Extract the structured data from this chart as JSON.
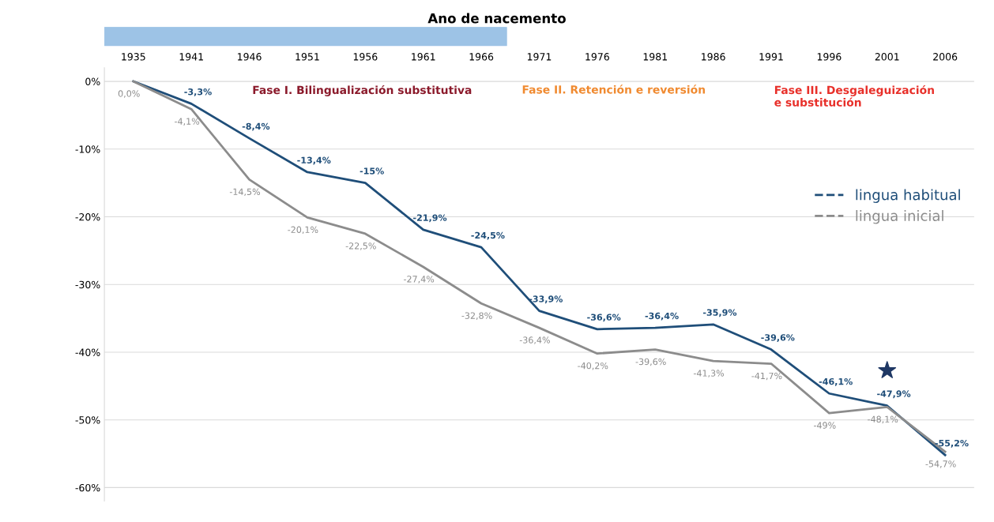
{
  "chart_data": {
    "type": "line",
    "title": "Ano de nacemento",
    "categories": [
      "1935",
      "1941",
      "1946",
      "1951",
      "1956",
      "1961",
      "1966",
      "1971",
      "1976",
      "1981",
      "1986",
      "1991",
      "1996",
      "2001",
      "2006"
    ],
    "series": [
      {
        "name": "lingua habitual",
        "color": "#1f4e79",
        "values": [
          0,
          -3.3,
          -8.4,
          -13.4,
          -15,
          -21.9,
          -24.5,
          -33.9,
          -36.6,
          -36.4,
          -35.9,
          -39.6,
          -46.1,
          -47.9,
          -55.2
        ],
        "value_labels": [
          null,
          "-3,3%",
          "-8,4%",
          "-13,4%",
          "-15%",
          "-21,9%",
          "-24,5%",
          "-33,9%",
          "-36,6%",
          "-36,4%",
          "-35,9%",
          "-39,6%",
          "-46,1%",
          "-47,9%",
          "-55,2%"
        ]
      },
      {
        "name": "lingua inicial",
        "color": "#8c8c8c",
        "values": [
          0,
          -4.1,
          -14.5,
          -20.1,
          -22.5,
          -27.4,
          -32.8,
          -36.4,
          -40.2,
          -39.6,
          -41.3,
          -41.7,
          -49,
          -48.1,
          -54.7
        ],
        "value_labels": [
          "0,0%",
          "-4,1%",
          "-14,5%",
          "-20,1%",
          "-22,5%",
          "-27,4%",
          "-32,8%",
          "-36,4%",
          "-40,2%",
          "-39,6%",
          "-41,3%",
          "-41,7%",
          "-49%",
          "-48,1%",
          "-54,7%"
        ]
      },
      {
        "type": "scatter",
        "marker": "star",
        "color": "#1f3864",
        "values": [
          null,
          null,
          null,
          null,
          null,
          null,
          null,
          null,
          null,
          null,
          null,
          null,
          null,
          -42.7,
          null
        ]
      }
    ],
    "ylim": [
      -62,
      2
    ],
    "yticks": [
      {
        "value": 0,
        "label": "0%"
      },
      {
        "value": -10,
        "label": "-10%"
      },
      {
        "value": -20,
        "label": "-20%"
      },
      {
        "value": -30,
        "label": "-30%"
      },
      {
        "value": -40,
        "label": "-40%"
      },
      {
        "value": -50,
        "label": "-50%"
      },
      {
        "value": -60,
        "label": "-60%"
      }
    ],
    "grid": "y",
    "legend": "right",
    "annotations": [
      "Fase I. Bilingualización substitutiva",
      "Fase II. Retención e reversión",
      "Fase III. Desgaleguización\ne substitución"
    ]
  }
}
